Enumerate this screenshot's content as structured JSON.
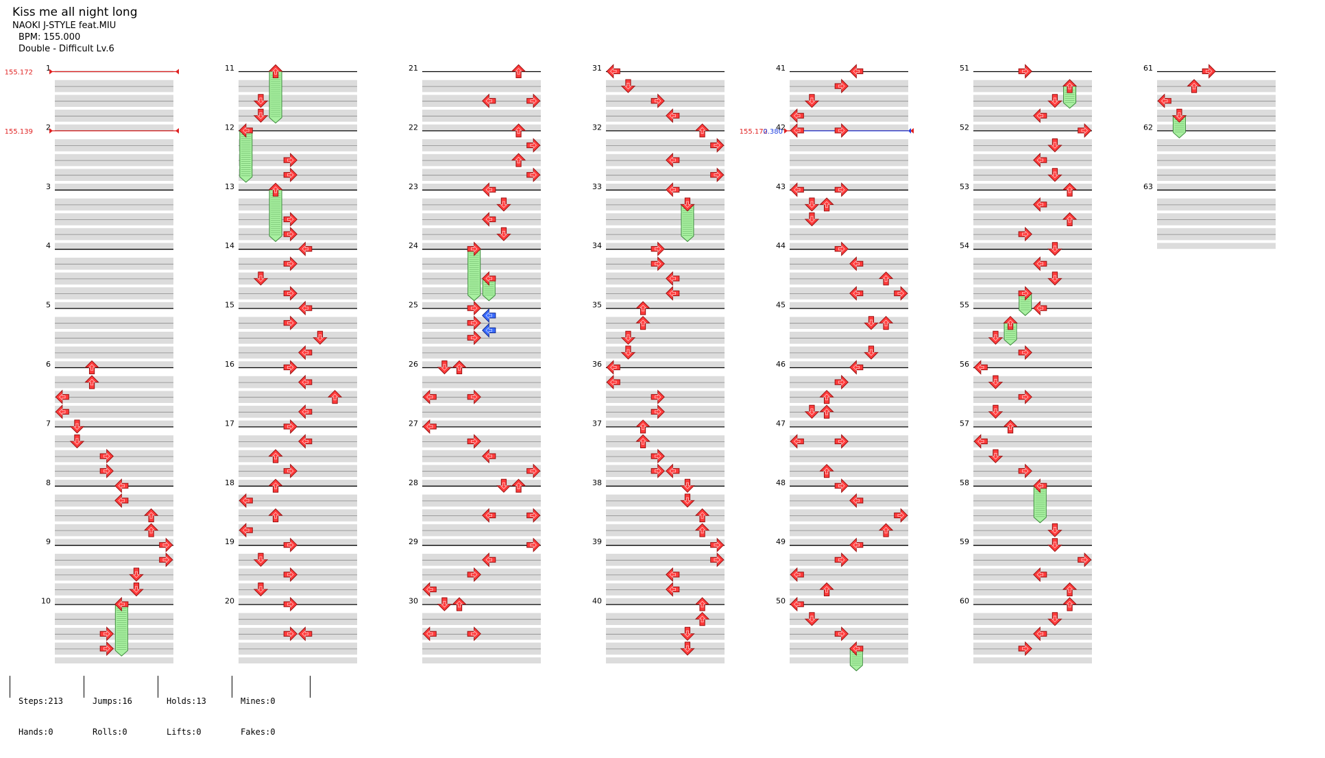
{
  "song": {
    "title": "Kiss me all night long",
    "artist": "NAOKI J-STYLE feat.MIU",
    "bpm": "BPM: 155.000",
    "chart": "Double - Difficult  Lv.6"
  },
  "markers": {
    "bpm_changes": [
      {
        "measure": 1,
        "value": "155.172"
      },
      {
        "measure": 2,
        "value": "155.139"
      },
      {
        "measure": 42,
        "value": "155.172"
      }
    ],
    "stops": [
      {
        "measure": 42,
        "value": "0.380"
      }
    ]
  },
  "measures": {
    "columns": [
      {
        "start": 1,
        "labels": [
          "1",
          "2",
          "3",
          "4",
          "5",
          "6",
          "7",
          "8",
          "9",
          "10"
        ]
      },
      {
        "start": 11,
        "labels": [
          "11",
          "12",
          "13",
          "14",
          "15",
          "16",
          "17",
          "18",
          "19",
          "20"
        ]
      },
      {
        "start": 21,
        "labels": [
          "21",
          "22",
          "23",
          "24",
          "25",
          "26",
          "27",
          "28",
          "29",
          "30"
        ]
      },
      {
        "start": 31,
        "labels": [
          "31",
          "32",
          "33",
          "34",
          "35",
          "36",
          "37",
          "38",
          "39",
          "40"
        ]
      },
      {
        "start": 41,
        "labels": [
          "41",
          "42",
          "43",
          "44",
          "45",
          "46",
          "47",
          "48",
          "49",
          "50"
        ]
      },
      {
        "start": 51,
        "labels": [
          "51",
          "52",
          "53",
          "54",
          "55",
          "56",
          "57",
          "58",
          "59",
          "60"
        ]
      },
      {
        "start": 61,
        "labels": [
          "61",
          "62",
          "63"
        ]
      }
    ]
  },
  "notes": [
    {
      "m": 6,
      "b": 0,
      "p": 2,
      "t": "tap"
    },
    {
      "m": 6,
      "b": 1,
      "p": 2,
      "t": "tap"
    },
    {
      "m": 6,
      "b": 2,
      "p": 0,
      "t": "tap"
    },
    {
      "m": 6,
      "b": 3,
      "p": 0,
      "t": "tap"
    },
    {
      "m": 7,
      "b": 0,
      "p": 1,
      "t": "tap"
    },
    {
      "m": 7,
      "b": 1,
      "p": 1,
      "t": "tap"
    },
    {
      "m": 7,
      "b": 2,
      "p": 3,
      "t": "tap"
    },
    {
      "m": 7,
      "b": 3,
      "p": 3,
      "t": "tap"
    },
    {
      "m": 8,
      "b": 0,
      "p": 4,
      "t": "tap"
    },
    {
      "m": 8,
      "b": 1,
      "p": 4,
      "t": "tap"
    },
    {
      "m": 8,
      "b": 2,
      "p": 6,
      "t": "tap"
    },
    {
      "m": 8,
      "b": 3,
      "p": 6,
      "t": "tap"
    },
    {
      "m": 9,
      "b": 0,
      "p": 7,
      "t": "tap"
    },
    {
      "m": 9,
      "b": 1,
      "p": 7,
      "t": "tap"
    },
    {
      "m": 9,
      "b": 2,
      "p": 5,
      "t": "tap"
    },
    {
      "m": 9,
      "b": 3,
      "p": 5,
      "t": "tap"
    },
    {
      "m": 10,
      "b": 0,
      "p": 4,
      "t": "hold",
      "len": 3.5
    },
    {
      "m": 10,
      "b": 2,
      "p": 3,
      "t": "tap"
    },
    {
      "m": 10,
      "b": 3,
      "p": 3,
      "t": "tap"
    },
    {
      "m": 11,
      "b": 0,
      "p": 2,
      "t": "hold",
      "len": 3.5
    },
    {
      "m": 11,
      "b": 2,
      "p": 1,
      "t": "tap"
    },
    {
      "m": 11,
      "b": 3,
      "p": 1,
      "t": "tap"
    },
    {
      "m": 12,
      "b": 0,
      "p": 0,
      "t": "hold",
      "len": 3.5
    },
    {
      "m": 12,
      "b": 2,
      "p": 3,
      "t": "tap"
    },
    {
      "m": 12,
      "b": 3,
      "p": 3,
      "t": "tap"
    },
    {
      "m": 13,
      "b": 0,
      "p": 2,
      "t": "hold",
      "len": 3.5
    },
    {
      "m": 13,
      "b": 2,
      "p": 3,
      "t": "tap"
    },
    {
      "m": 13,
      "b": 3,
      "p": 3,
      "t": "tap"
    },
    {
      "m": 14,
      "b": 0,
      "p": 4,
      "t": "tap"
    },
    {
      "m": 14,
      "b": 1,
      "p": 3,
      "t": "tap"
    },
    {
      "m": 14,
      "b": 2,
      "p": 1,
      "t": "tap"
    },
    {
      "m": 14,
      "b": 3,
      "p": 3,
      "t": "tap"
    },
    {
      "m": 15,
      "b": 0,
      "p": 4,
      "t": "tap"
    },
    {
      "m": 15,
      "b": 1,
      "p": 3,
      "t": "tap"
    },
    {
      "m": 15,
      "b": 2,
      "p": 5,
      "t": "tap"
    },
    {
      "m": 15,
      "b": 3,
      "p": 4,
      "t": "tap"
    },
    {
      "m": 16,
      "b": 0,
      "p": 3,
      "t": "tap"
    },
    {
      "m": 16,
      "b": 1,
      "p": 4,
      "t": "tap"
    },
    {
      "m": 16,
      "b": 2,
      "p": 6,
      "t": "tap"
    },
    {
      "m": 16,
      "b": 3,
      "p": 4,
      "t": "tap"
    },
    {
      "m": 17,
      "b": 0,
      "p": 3,
      "t": "tap"
    },
    {
      "m": 17,
      "b": 1,
      "p": 4,
      "t": "tap"
    },
    {
      "m": 17,
      "b": 2,
      "p": 2,
      "t": "tap"
    },
    {
      "m": 17,
      "b": 3,
      "p": 3,
      "t": "tap"
    },
    {
      "m": 18,
      "b": 0,
      "p": 2,
      "t": "tap"
    },
    {
      "m": 18,
      "b": 1,
      "p": 0,
      "t": "tap"
    },
    {
      "m": 18,
      "b": 2,
      "p": 2,
      "t": "tap"
    },
    {
      "m": 18,
      "b": 3,
      "p": 0,
      "t": "tap"
    },
    {
      "m": 19,
      "b": 0,
      "p": 3,
      "t": "tap"
    },
    {
      "m": 19,
      "b": 1,
      "p": 1,
      "t": "tap"
    },
    {
      "m": 19,
      "b": 2,
      "p": 3,
      "t": "tap"
    },
    {
      "m": 19,
      "b": 3,
      "p": 1,
      "t": "tap"
    },
    {
      "m": 20,
      "b": 0,
      "p": 3,
      "t": "tap"
    },
    {
      "m": 20,
      "b": 2,
      "p": 3,
      "t": "tap"
    },
    {
      "m": 20,
      "b": 2,
      "p": 4,
      "t": "tap"
    },
    {
      "m": 21,
      "b": 0,
      "p": 6,
      "t": "tap"
    },
    {
      "m": 21,
      "b": 2,
      "p": 4,
      "t": "tap"
    },
    {
      "m": 21,
      "b": 2,
      "p": 7,
      "t": "tap"
    },
    {
      "m": 22,
      "b": 0,
      "p": 6,
      "t": "tap"
    },
    {
      "m": 22,
      "b": 1,
      "p": 7,
      "t": "tap"
    },
    {
      "m": 22,
      "b": 2,
      "p": 6,
      "t": "tap"
    },
    {
      "m": 22,
      "b": 3,
      "p": 7,
      "t": "tap"
    },
    {
      "m": 23,
      "b": 0,
      "p": 4,
      "t": "tap"
    },
    {
      "m": 23,
      "b": 1,
      "p": 5,
      "t": "tap"
    },
    {
      "m": 23,
      "b": 2,
      "p": 4,
      "t": "tap"
    },
    {
      "m": 23,
      "b": 3,
      "p": 5,
      "t": "tap"
    },
    {
      "m": 24,
      "b": 0,
      "p": 3,
      "t": "hold",
      "len": 3.5
    },
    {
      "m": 24,
      "b": 2,
      "p": 4,
      "t": "hold",
      "len": 1.5
    },
    {
      "m": 25,
      "b": 0,
      "p": 3,
      "t": "tap"
    },
    {
      "m": 25,
      "b": 0.5,
      "p": 4,
      "t": "blue"
    },
    {
      "m": 25,
      "b": 1,
      "p": 3,
      "t": "tap"
    },
    {
      "m": 25,
      "b": 1.5,
      "p": 4,
      "t": "blue"
    },
    {
      "m": 25,
      "b": 2,
      "p": 3,
      "t": "tap"
    },
    {
      "m": 26,
      "b": 0,
      "p": 1,
      "t": "tap"
    },
    {
      "m": 26,
      "b": 0,
      "p": 2,
      "t": "tap"
    },
    {
      "m": 26,
      "b": 2,
      "p": 0,
      "t": "tap"
    },
    {
      "m": 26,
      "b": 2,
      "p": 3,
      "t": "tap"
    },
    {
      "m": 27,
      "b": 0,
      "p": 0,
      "t": "tap"
    },
    {
      "m": 27,
      "b": 1,
      "p": 3,
      "t": "tap"
    },
    {
      "m": 27,
      "b": 2,
      "p": 4,
      "t": "tap"
    },
    {
      "m": 27,
      "b": 3,
      "p": 7,
      "t": "tap"
    },
    {
      "m": 28,
      "b": 0,
      "p": 5,
      "t": "tap"
    },
    {
      "m": 28,
      "b": 0,
      "p": 6,
      "t": "tap"
    },
    {
      "m": 28,
      "b": 2,
      "p": 4,
      "t": "tap"
    },
    {
      "m": 28,
      "b": 2,
      "p": 7,
      "t": "tap"
    },
    {
      "m": 29,
      "b": 0,
      "p": 7,
      "t": "tap"
    },
    {
      "m": 29,
      "b": 1,
      "p": 4,
      "t": "tap"
    },
    {
      "m": 29,
      "b": 2,
      "p": 3,
      "t": "tap"
    },
    {
      "m": 29,
      "b": 3,
      "p": 0,
      "t": "tap"
    },
    {
      "m": 30,
      "b": 0,
      "p": 1,
      "t": "tap"
    },
    {
      "m": 30,
      "b": 0,
      "p": 2,
      "t": "tap"
    },
    {
      "m": 30,
      "b": 2,
      "p": 0,
      "t": "tap"
    },
    {
      "m": 30,
      "b": 2,
      "p": 3,
      "t": "tap"
    },
    {
      "m": 31,
      "b": 0,
      "p": 0,
      "t": "tap"
    },
    {
      "m": 31,
      "b": 1,
      "p": 1,
      "t": "tap"
    },
    {
      "m": 31,
      "b": 2,
      "p": 3,
      "t": "tap"
    },
    {
      "m": 31,
      "b": 3,
      "p": 4,
      "t": "tap"
    },
    {
      "m": 32,
      "b": 0,
      "p": 6,
      "t": "tap"
    },
    {
      "m": 32,
      "b": 1,
      "p": 7,
      "t": "tap"
    },
    {
      "m": 32,
      "b": 2,
      "p": 4,
      "t": "tap"
    },
    {
      "m": 32,
      "b": 3,
      "p": 7,
      "t": "tap"
    },
    {
      "m": 33,
      "b": 0,
      "p": 4,
      "t": "tap"
    },
    {
      "m": 33,
      "b": 1,
      "p": 5,
      "t": "hold",
      "len": 2.5
    },
    {
      "m": 34,
      "b": 0,
      "p": 3,
      "t": "tap"
    },
    {
      "m": 34,
      "b": 1,
      "p": 3,
      "t": "tap"
    },
    {
      "m": 34,
      "b": 2,
      "p": 4,
      "t": "tap"
    },
    {
      "m": 34,
      "b": 3,
      "p": 4,
      "t": "tap"
    },
    {
      "m": 35,
      "b": 0,
      "p": 2,
      "t": "tap"
    },
    {
      "m": 35,
      "b": 1,
      "p": 2,
      "t": "tap"
    },
    {
      "m": 35,
      "b": 2,
      "p": 1,
      "t": "tap"
    },
    {
      "m": 35,
      "b": 3,
      "p": 1,
      "t": "tap"
    },
    {
      "m": 36,
      "b": 0,
      "p": 0,
      "t": "tap"
    },
    {
      "m": 36,
      "b": 1,
      "p": 0,
      "t": "tap"
    },
    {
      "m": 36,
      "b": 2,
      "p": 3,
      "t": "tap"
    },
    {
      "m": 36,
      "b": 3,
      "p": 3,
      "t": "tap"
    },
    {
      "m": 37,
      "b": 0,
      "p": 2,
      "t": "tap"
    },
    {
      "m": 37,
      "b": 1,
      "p": 2,
      "t": "tap"
    },
    {
      "m": 37,
      "b": 2,
      "p": 3,
      "t": "tap"
    },
    {
      "m": 37,
      "b": 3,
      "p": 3,
      "t": "tap"
    },
    {
      "m": 37,
      "b": 3,
      "p": 4,
      "t": "tap"
    },
    {
      "m": 38,
      "b": 0,
      "p": 5,
      "t": "tap"
    },
    {
      "m": 38,
      "b": 1,
      "p": 5,
      "t": "tap"
    },
    {
      "m": 38,
      "b": 2,
      "p": 6,
      "t": "tap"
    },
    {
      "m": 38,
      "b": 3,
      "p": 6,
      "t": "tap"
    },
    {
      "m": 39,
      "b": 0,
      "p": 7,
      "t": "tap"
    },
    {
      "m": 39,
      "b": 1,
      "p": 7,
      "t": "tap"
    },
    {
      "m": 39,
      "b": 2,
      "p": 4,
      "t": "tap"
    },
    {
      "m": 39,
      "b": 3,
      "p": 4,
      "t": "tap"
    },
    {
      "m": 40,
      "b": 0,
      "p": 6,
      "t": "tap"
    },
    {
      "m": 40,
      "b": 1,
      "p": 6,
      "t": "tap"
    },
    {
      "m": 40,
      "b": 2,
      "p": 5,
      "t": "tap"
    },
    {
      "m": 40,
      "b": 3,
      "p": 5,
      "t": "tap"
    },
    {
      "m": 41,
      "b": 0,
      "p": 4,
      "t": "tap"
    },
    {
      "m": 41,
      "b": 1,
      "p": 3,
      "t": "tap"
    },
    {
      "m": 41,
      "b": 2,
      "p": 1,
      "t": "tap"
    },
    {
      "m": 41,
      "b": 3,
      "p": 0,
      "t": "tap"
    },
    {
      "m": 42,
      "b": 0,
      "p": 0,
      "t": "tap"
    },
    {
      "m": 42,
      "b": 0,
      "p": 3,
      "t": "tap"
    },
    {
      "m": 43,
      "b": 0,
      "p": 0,
      "t": "tap"
    },
    {
      "m": 43,
      "b": 0,
      "p": 3,
      "t": "tap"
    },
    {
      "m": 43,
      "b": 1,
      "p": 1,
      "t": "tap"
    },
    {
      "m": 43,
      "b": 1,
      "p": 2,
      "t": "tap"
    },
    {
      "m": 43,
      "b": 2,
      "p": 1,
      "t": "tap"
    },
    {
      "m": 44,
      "b": 0,
      "p": 3,
      "t": "tap"
    },
    {
      "m": 44,
      "b": 1,
      "p": 4,
      "t": "tap"
    },
    {
      "m": 44,
      "b": 2,
      "p": 6,
      "t": "tap"
    },
    {
      "m": 44,
      "b": 3,
      "p": 4,
      "t": "tap"
    },
    {
      "m": 44,
      "b": 3,
      "p": 7,
      "t": "tap"
    },
    {
      "m": 45,
      "b": 1,
      "p": 5,
      "t": "tap"
    },
    {
      "m": 45,
      "b": 1,
      "p": 6,
      "t": "tap"
    },
    {
      "m": 45,
      "b": 3,
      "p": 5,
      "t": "tap"
    },
    {
      "m": 46,
      "b": 0,
      "p": 4,
      "t": "tap"
    },
    {
      "m": 46,
      "b": 1,
      "p": 3,
      "t": "tap"
    },
    {
      "m": 46,
      "b": 2,
      "p": 2,
      "t": "tap"
    },
    {
      "m": 46,
      "b": 3,
      "p": 1,
      "t": "tap"
    },
    {
      "m": 46,
      "b": 3,
      "p": 2,
      "t": "tap"
    },
    {
      "m": 47,
      "b": 1,
      "p": 0,
      "t": "tap"
    },
    {
      "m": 47,
      "b": 1,
      "p": 3,
      "t": "tap"
    },
    {
      "m": 47,
      "b": 3,
      "p": 2,
      "t": "tap"
    },
    {
      "m": 48,
      "b": 0,
      "p": 3,
      "t": "tap"
    },
    {
      "m": 48,
      "b": 1,
      "p": 4,
      "t": "tap"
    },
    {
      "m": 48,
      "b": 2,
      "p": 7,
      "t": "tap"
    },
    {
      "m": 48,
      "b": 3,
      "p": 6,
      "t": "tap"
    },
    {
      "m": 49,
      "b": 0,
      "p": 4,
      "t": "tap"
    },
    {
      "m": 49,
      "b": 1,
      "p": 3,
      "t": "tap"
    },
    {
      "m": 49,
      "b": 2,
      "p": 0,
      "t": "tap"
    },
    {
      "m": 49,
      "b": 3,
      "p": 2,
      "t": "tap"
    },
    {
      "m": 50,
      "b": 0,
      "p": 0,
      "t": "tap"
    },
    {
      "m": 50,
      "b": 1,
      "p": 1,
      "t": "tap"
    },
    {
      "m": 50,
      "b": 2,
      "p": 3,
      "t": "tap"
    },
    {
      "m": 50,
      "b": 3,
      "p": 4,
      "t": "hold",
      "len": 1.5
    },
    {
      "m": 51,
      "b": 0,
      "p": 3,
      "t": "tap"
    },
    {
      "m": 51,
      "b": 1,
      "p": 6,
      "t": "hold",
      "len": 1.5
    },
    {
      "m": 51,
      "b": 2,
      "p": 5,
      "t": "tap"
    },
    {
      "m": 51,
      "b": 3,
      "p": 4,
      "t": "tap"
    },
    {
      "m": 52,
      "b": 0,
      "p": 7,
      "t": "tap"
    },
    {
      "m": 52,
      "b": 1,
      "p": 5,
      "t": "tap"
    },
    {
      "m": 52,
      "b": 2,
      "p": 4,
      "t": "tap"
    },
    {
      "m": 52,
      "b": 3,
      "p": 5,
      "t": "tap"
    },
    {
      "m": 53,
      "b": 0,
      "p": 6,
      "t": "tap"
    },
    {
      "m": 53,
      "b": 1,
      "p": 4,
      "t": "tap"
    },
    {
      "m": 53,
      "b": 2,
      "p": 6,
      "t": "tap"
    },
    {
      "m": 53,
      "b": 3,
      "p": 3,
      "t": "tap"
    },
    {
      "m": 54,
      "b": 0,
      "p": 5,
      "t": "tap"
    },
    {
      "m": 54,
      "b": 1,
      "p": 4,
      "t": "tap"
    },
    {
      "m": 54,
      "b": 2,
      "p": 5,
      "t": "tap"
    },
    {
      "m": 54,
      "b": 3,
      "p": 3,
      "t": "hold",
      "len": 1.5
    },
    {
      "m": 55,
      "b": 0,
      "p": 4,
      "t": "tap"
    },
    {
      "m": 55,
      "b": 1,
      "p": 2,
      "t": "hold",
      "len": 1.5
    },
    {
      "m": 55,
      "b": 2,
      "p": 1,
      "t": "tap"
    },
    {
      "m": 55,
      "b": 3,
      "p": 3,
      "t": "tap"
    },
    {
      "m": 56,
      "b": 0,
      "p": 0,
      "t": "tap"
    },
    {
      "m": 56,
      "b": 1,
      "p": 1,
      "t": "tap"
    },
    {
      "m": 56,
      "b": 2,
      "p": 3,
      "t": "tap"
    },
    {
      "m": 56,
      "b": 3,
      "p": 1,
      "t": "tap"
    },
    {
      "m": 57,
      "b": 0,
      "p": 2,
      "t": "tap"
    },
    {
      "m": 57,
      "b": 1,
      "p": 0,
      "t": "tap"
    },
    {
      "m": 57,
      "b": 2,
      "p": 1,
      "t": "tap"
    },
    {
      "m": 57,
      "b": 3,
      "p": 3,
      "t": "tap"
    },
    {
      "m": 58,
      "b": 0,
      "p": 4,
      "t": "hold",
      "len": 2.5
    },
    {
      "m": 58,
      "b": 3,
      "p": 5,
      "t": "tap"
    },
    {
      "m": 59,
      "b": 0,
      "p": 5,
      "t": "tap"
    },
    {
      "m": 59,
      "b": 1,
      "p": 7,
      "t": "tap"
    },
    {
      "m": 59,
      "b": 2,
      "p": 4,
      "t": "tap"
    },
    {
      "m": 59,
      "b": 3,
      "p": 6,
      "t": "tap"
    },
    {
      "m": 60,
      "b": 0,
      "p": 6,
      "t": "tap"
    },
    {
      "m": 60,
      "b": 1,
      "p": 5,
      "t": "tap"
    },
    {
      "m": 60,
      "b": 2,
      "p": 4,
      "t": "tap"
    },
    {
      "m": 60,
      "b": 3,
      "p": 3,
      "t": "tap"
    },
    {
      "m": 61,
      "b": 0,
      "p": 3,
      "t": "tap"
    },
    {
      "m": 61,
      "b": 1,
      "p": 2,
      "t": "tap"
    },
    {
      "m": 61,
      "b": 2,
      "p": 0,
      "t": "tap"
    },
    {
      "m": 61,
      "b": 3,
      "p": 1,
      "t": "hold",
      "len": 1.5
    }
  ],
  "stats": [
    {
      "top": "Steps:213",
      "bottom": "Hands:0"
    },
    {
      "top": "Jumps:16",
      "bottom": "Rolls:0"
    },
    {
      "top": "Holds:13",
      "bottom": "Lifts:0"
    },
    {
      "top": "Mines:0",
      "bottom": "Fakes:0"
    }
  ],
  "colors": {
    "tap": "#ff3b3b",
    "tap_stroke": "#9a1010",
    "blue": "#3a6cff",
    "hold": "#a8f0a0",
    "hold_stroke": "#3c8a3c",
    "bpm_marker": "#e02020",
    "stop_marker": "#2040e0",
    "row_band": "#dcdcdc"
  }
}
